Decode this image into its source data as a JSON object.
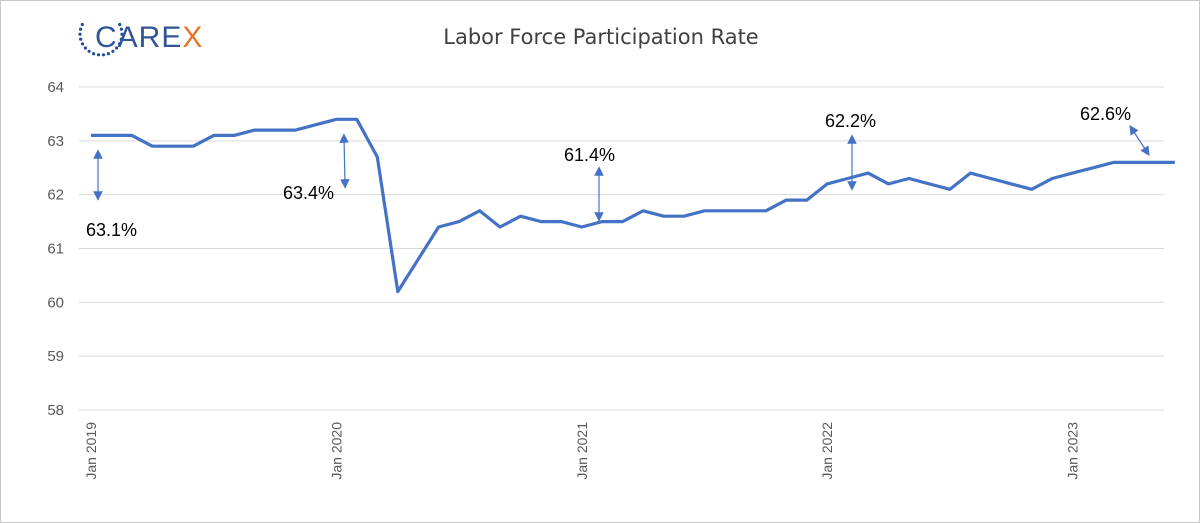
{
  "logo": {
    "text_prefix": "CARE",
    "text_suffix": "X",
    "colors": {
      "dots": "#1f4e9c",
      "text": "#2f5597",
      "accent": "#e8742b"
    }
  },
  "chart_data": {
    "type": "line",
    "title": "Labor Force Participation Rate",
    "xlabel": "",
    "ylabel": "",
    "ylim": [
      58,
      64
    ],
    "yticks": [
      "58",
      "59",
      "60",
      "61",
      "62",
      "63",
      "64"
    ],
    "grid": true,
    "xtick_labels": [
      "Jan 2019",
      "Jan 2020",
      "Jan 2021",
      "Jan 2022",
      "Jan 2023"
    ],
    "series": [
      {
        "color": "#4472c4",
        "points": [
          {
            "x": "2019-01",
            "y": 63.1
          },
          {
            "x": "2019-02",
            "y": 63.1
          },
          {
            "x": "2019-03",
            "y": 63.1
          },
          {
            "x": "2019-04",
            "y": 62.9
          },
          {
            "x": "2019-05",
            "y": 62.9
          },
          {
            "x": "2019-06",
            "y": 62.9
          },
          {
            "x": "2019-07",
            "y": 63.1
          },
          {
            "x": "2019-08",
            "y": 63.1
          },
          {
            "x": "2019-09",
            "y": 63.2
          },
          {
            "x": "2019-10",
            "y": 63.2
          },
          {
            "x": "2019-11",
            "y": 63.2
          },
          {
            "x": "2019-12",
            "y": 63.3
          },
          {
            "x": "2020-01",
            "y": 63.4
          },
          {
            "x": "2020-02",
            "y": 63.4
          },
          {
            "x": "2020-03",
            "y": 62.7
          },
          {
            "x": "2020-04",
            "y": 60.2
          },
          {
            "x": "2020-05",
            "y": 60.8
          },
          {
            "x": "2020-06",
            "y": 61.4
          },
          {
            "x": "2020-07",
            "y": 61.5
          },
          {
            "x": "2020-08",
            "y": 61.7
          },
          {
            "x": "2020-09",
            "y": 61.4
          },
          {
            "x": "2020-10",
            "y": 61.6
          },
          {
            "x": "2020-11",
            "y": 61.5
          },
          {
            "x": "2020-12",
            "y": 61.5
          },
          {
            "x": "2021-01",
            "y": 61.4
          },
          {
            "x": "2021-02",
            "y": 61.5
          },
          {
            "x": "2021-03",
            "y": 61.5
          },
          {
            "x": "2021-04",
            "y": 61.7
          },
          {
            "x": "2021-05",
            "y": 61.6
          },
          {
            "x": "2021-06",
            "y": 61.6
          },
          {
            "x": "2021-07",
            "y": 61.7
          },
          {
            "x": "2021-08",
            "y": 61.7
          },
          {
            "x": "2021-09",
            "y": 61.7
          },
          {
            "x": "2021-10",
            "y": 61.7
          },
          {
            "x": "2021-11",
            "y": 61.9
          },
          {
            "x": "2021-12",
            "y": 61.9
          },
          {
            "x": "2022-01",
            "y": 62.2
          },
          {
            "x": "2022-02",
            "y": 62.3
          },
          {
            "x": "2022-03",
            "y": 62.4
          },
          {
            "x": "2022-04",
            "y": 62.2
          },
          {
            "x": "2022-05",
            "y": 62.3
          },
          {
            "x": "2022-06",
            "y": 62.2
          },
          {
            "x": "2022-07",
            "y": 62.1
          },
          {
            "x": "2022-08",
            "y": 62.4
          },
          {
            "x": "2022-09",
            "y": 62.3
          },
          {
            "x": "2022-10",
            "y": 62.2
          },
          {
            "x": "2022-11",
            "y": 62.1
          },
          {
            "x": "2022-12",
            "y": 62.3
          },
          {
            "x": "2023-01",
            "y": 62.4
          },
          {
            "x": "2023-02",
            "y": 62.5
          },
          {
            "x": "2023-03",
            "y": 62.6
          },
          {
            "x": "2023-04",
            "y": 62.6
          },
          {
            "x": "2023-05",
            "y": 62.6
          },
          {
            "x": "2023-06",
            "y": 62.6
          }
        ]
      }
    ],
    "annotations": [
      {
        "text": "63.1%",
        "x": "2019-01",
        "y": 63.1
      },
      {
        "text": "63.4%",
        "x": "2020-01",
        "y": 63.4
      },
      {
        "text": "61.4%",
        "x": "2021-01",
        "y": 61.4
      },
      {
        "text": "62.2%",
        "x": "2022-01",
        "y": 62.2
      },
      {
        "text": "62.6%",
        "x": "2023-03",
        "y": 62.6
      }
    ]
  }
}
